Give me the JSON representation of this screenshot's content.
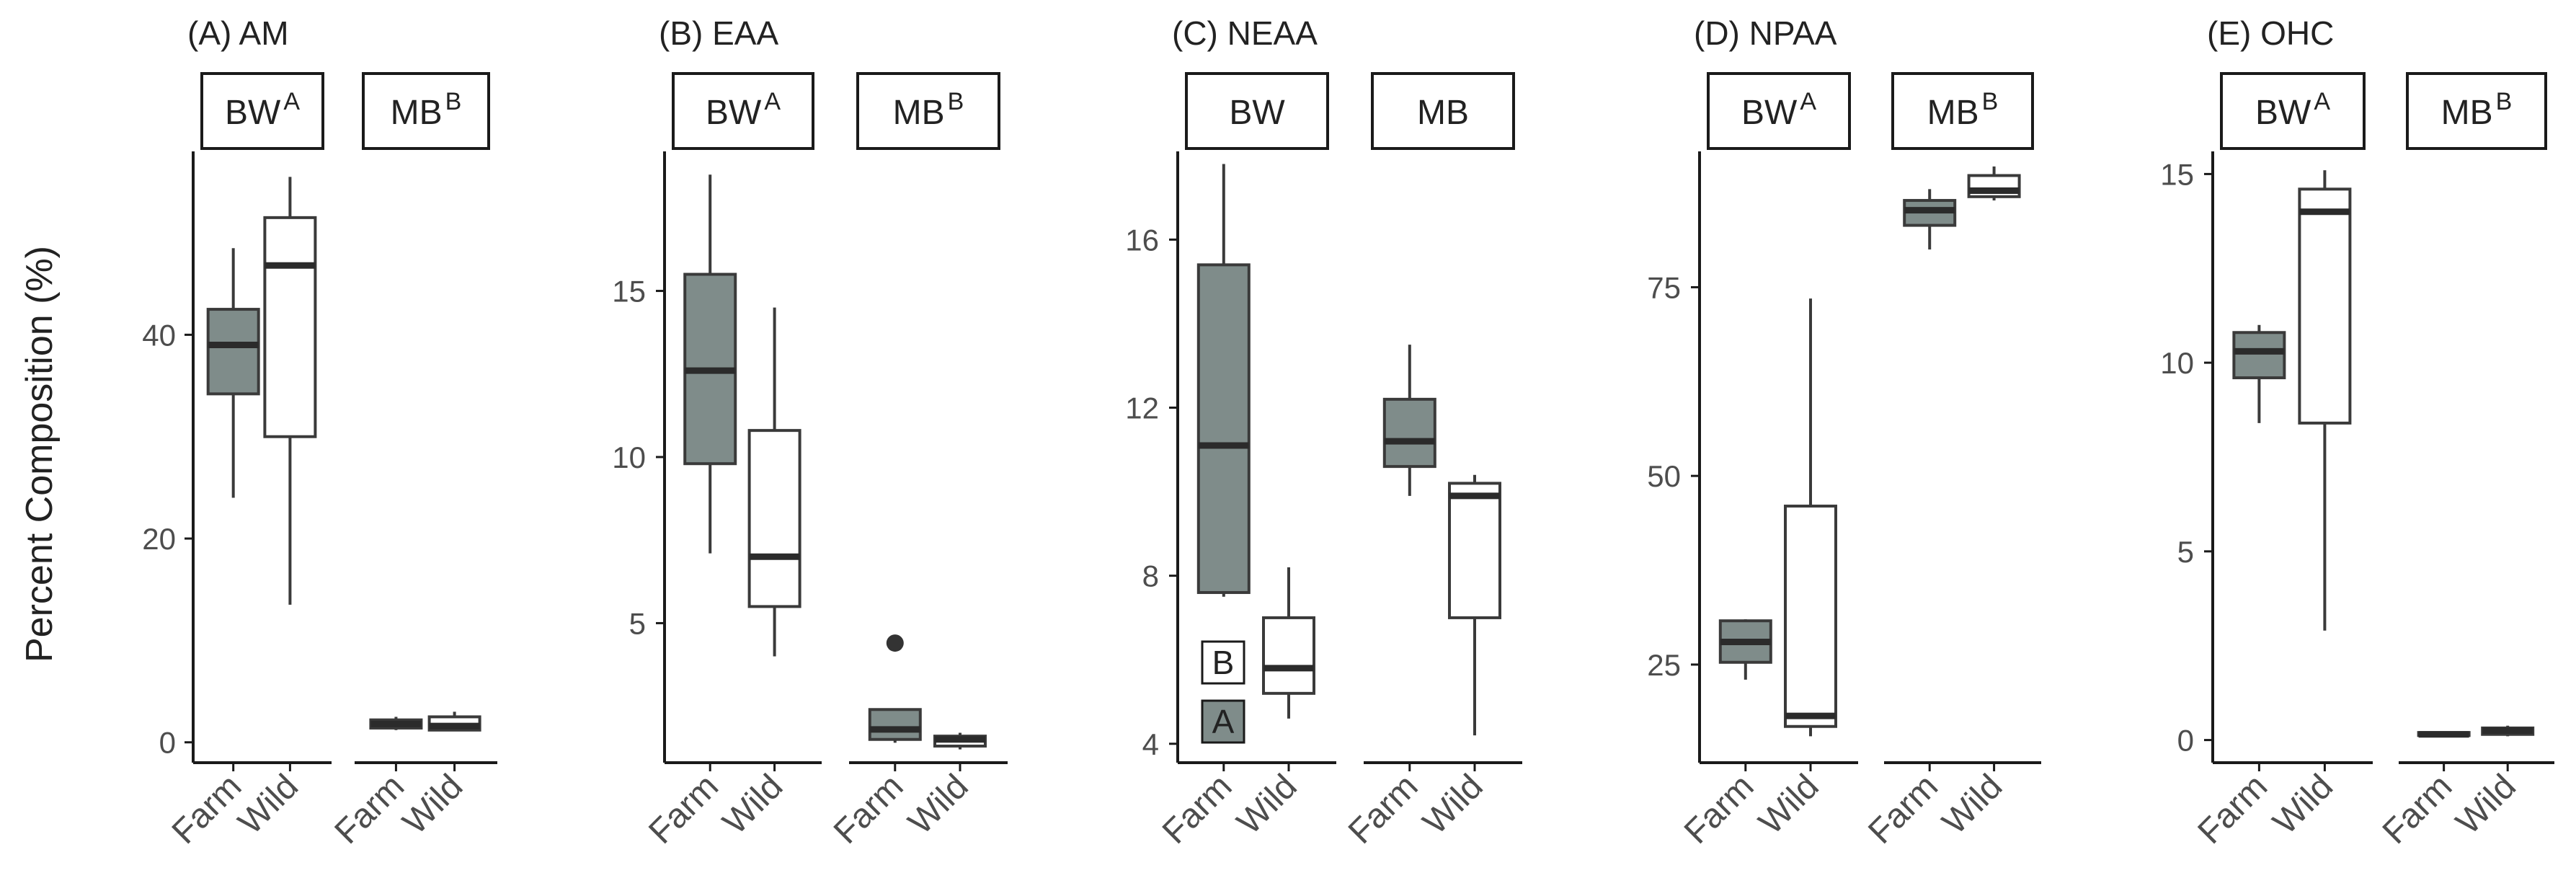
{
  "y_axis_label": "Percent Composition (%)",
  "chart_data": [
    {
      "type": "boxplot",
      "title": "(A) AM",
      "ylabel": "Percent Composition (%)",
      "ylim": [
        -2,
        58
      ],
      "yticks": [
        0,
        20,
        40
      ],
      "facets": [
        {
          "label": "BW",
          "superscript": "A"
        },
        {
          "label": "MB",
          "superscript": "B"
        }
      ],
      "categories": [
        "Farm",
        "Wild"
      ],
      "boxes": [
        {
          "facet": "BW",
          "group": "Farm",
          "fill": "#7f8c8a",
          "whisker_low": 24,
          "q1": 34.2,
          "median": 39,
          "q3": 42.5,
          "whisker_high": 48.5,
          "outliers": []
        },
        {
          "facet": "BW",
          "group": "Wild",
          "fill": "#ffffff",
          "whisker_low": 13.5,
          "q1": 30,
          "median": 46.8,
          "q3": 51.5,
          "whisker_high": 55.5,
          "outliers": []
        },
        {
          "facet": "MB",
          "group": "Farm",
          "fill": "#7f8c8a",
          "whisker_low": 1.2,
          "q1": 1.4,
          "median": 1.8,
          "q3": 2.2,
          "whisker_high": 2.5,
          "outliers": []
        },
        {
          "facet": "MB",
          "group": "Wild",
          "fill": "#ffffff",
          "whisker_low": 1.1,
          "q1": 1.2,
          "median": 1.6,
          "q3": 2.5,
          "whisker_high": 3.0,
          "outliers": []
        }
      ]
    },
    {
      "type": "boxplot",
      "title": "(B) EAA",
      "ylim": [
        0.8,
        19.2
      ],
      "yticks": [
        5,
        10,
        15
      ],
      "facets": [
        {
          "label": "BW",
          "superscript": "A"
        },
        {
          "label": "MB",
          "superscript": "B"
        }
      ],
      "categories": [
        "Farm",
        "Wild"
      ],
      "boxes": [
        {
          "facet": "BW",
          "group": "Farm",
          "fill": "#7f8c8a",
          "whisker_low": 7.1,
          "q1": 9.8,
          "median": 12.6,
          "q3": 15.5,
          "whisker_high": 18.5,
          "outliers": []
        },
        {
          "facet": "BW",
          "group": "Wild",
          "fill": "#ffffff",
          "whisker_low": 4.0,
          "q1": 5.5,
          "median": 7.0,
          "q3": 10.8,
          "whisker_high": 14.5,
          "outliers": []
        },
        {
          "facet": "MB",
          "group": "Farm",
          "fill": "#7f8c8a",
          "whisker_low": 1.4,
          "q1": 1.5,
          "median": 1.8,
          "q3": 2.4,
          "whisker_high": 2.4,
          "outliers": [
            4.4
          ]
        },
        {
          "facet": "MB",
          "group": "Wild",
          "fill": "#ffffff",
          "whisker_low": 1.2,
          "q1": 1.3,
          "median": 1.5,
          "q3": 1.6,
          "whisker_high": 1.7,
          "outliers": []
        }
      ]
    },
    {
      "type": "boxplot",
      "title": "(C) NEAA",
      "ylim": [
        3.55,
        18.1
      ],
      "yticks": [
        4,
        8,
        12,
        16
      ],
      "facets": [
        {
          "label": "BW",
          "superscript": ""
        },
        {
          "label": "MB",
          "superscript": ""
        }
      ],
      "categories": [
        "Farm",
        "Wild"
      ],
      "boxes": [
        {
          "facet": "BW",
          "group": "Farm",
          "fill": "#7f8c8a",
          "whisker_low": 7.5,
          "q1": 7.6,
          "median": 11.1,
          "q3": 15.4,
          "whisker_high": 17.8,
          "outliers": []
        },
        {
          "facet": "BW",
          "group": "Wild",
          "fill": "#ffffff",
          "whisker_low": 4.6,
          "q1": 5.2,
          "median": 5.8,
          "q3": 7.0,
          "whisker_high": 8.2,
          "outliers": []
        },
        {
          "facet": "MB",
          "group": "Farm",
          "fill": "#7f8c8a",
          "whisker_low": 9.9,
          "q1": 10.6,
          "median": 11.2,
          "q3": 12.2,
          "whisker_high": 13.5,
          "outliers": []
        },
        {
          "facet": "MB",
          "group": "Wild",
          "fill": "#ffffff",
          "whisker_low": 4.2,
          "q1": 7.0,
          "median": 9.9,
          "q3": 10.2,
          "whisker_high": 10.4,
          "outliers": []
        }
      ],
      "annotations": [
        {
          "text": "B",
          "fill": "#ffffff"
        },
        {
          "text": "A",
          "fill": "#7f8c8a"
        }
      ]
    },
    {
      "type": "boxplot",
      "title": "(D) NPAA",
      "ylim": [
        12,
        93
      ],
      "yticks": [
        25,
        50,
        75
      ],
      "facets": [
        {
          "label": "BW",
          "superscript": "A"
        },
        {
          "label": "MB",
          "superscript": "B"
        }
      ],
      "categories": [
        "Farm",
        "Wild"
      ],
      "boxes": [
        {
          "facet": "BW",
          "group": "Farm",
          "fill": "#7f8c8a",
          "whisker_low": 23,
          "q1": 25.3,
          "median": 28,
          "q3": 30.8,
          "whisker_high": 31,
          "outliers": []
        },
        {
          "facet": "BW",
          "group": "Wild",
          "fill": "#ffffff",
          "whisker_low": 15.5,
          "q1": 16.8,
          "median": 18.2,
          "q3": 46,
          "whisker_high": 73.5,
          "outliers": []
        },
        {
          "facet": "MB",
          "group": "Farm",
          "fill": "#7f8c8a",
          "whisker_low": 80,
          "q1": 83.2,
          "median": 85.2,
          "q3": 86.5,
          "whisker_high": 88,
          "outliers": []
        },
        {
          "facet": "MB",
          "group": "Wild",
          "fill": "#ffffff",
          "whisker_low": 86.5,
          "q1": 87,
          "median": 87.8,
          "q3": 89.8,
          "whisker_high": 91,
          "outliers": []
        }
      ]
    },
    {
      "type": "boxplot",
      "title": "(E) OHC",
      "ylim": [
        -0.6,
        15.6
      ],
      "yticks": [
        0,
        5,
        10,
        15
      ],
      "facets": [
        {
          "label": "BW",
          "superscript": "A"
        },
        {
          "label": "MB",
          "superscript": "B"
        }
      ],
      "categories": [
        "Farm",
        "Wild"
      ],
      "boxes": [
        {
          "facet": "BW",
          "group": "Farm",
          "fill": "#7f8c8a",
          "whisker_low": 8.4,
          "q1": 9.6,
          "median": 10.3,
          "q3": 10.8,
          "whisker_high": 11.0,
          "outliers": []
        },
        {
          "facet": "BW",
          "group": "Wild",
          "fill": "#ffffff",
          "whisker_low": 2.9,
          "q1": 8.4,
          "median": 14.0,
          "q3": 14.6,
          "whisker_high": 15.1,
          "outliers": []
        },
        {
          "facet": "MB",
          "group": "Farm",
          "fill": "#7f8c8a",
          "whisker_low": 0.1,
          "q1": 0.12,
          "median": 0.15,
          "q3": 0.2,
          "whisker_high": 0.22,
          "outliers": []
        },
        {
          "facet": "MB",
          "group": "Wild",
          "fill": "#ffffff",
          "whisker_low": 0.1,
          "q1": 0.15,
          "median": 0.25,
          "q3": 0.32,
          "whisker_high": 0.38,
          "outliers": []
        }
      ]
    }
  ]
}
